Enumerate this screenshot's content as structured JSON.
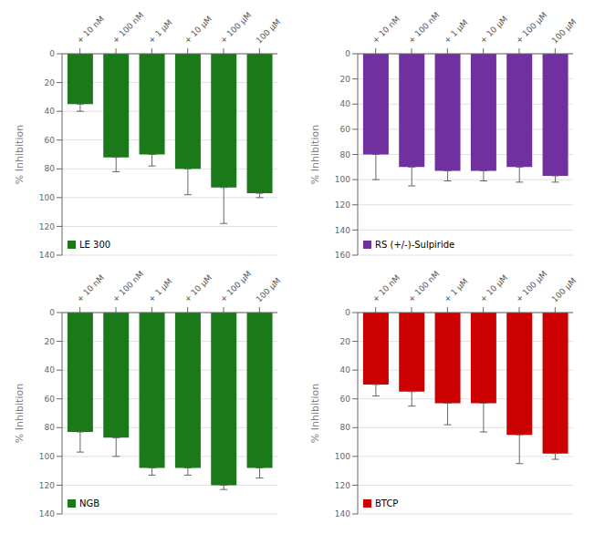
{
  "chart_data": [
    {
      "type": "bar",
      "categories": [
        "+ 10 nM",
        "+ 100 nM",
        "+ 1 μM",
        "+ 10 μM",
        "+ 100 μM",
        "100 μM"
      ],
      "series": [
        {
          "name": "LE 300",
          "color": "#1a7a1a",
          "values": [
            35,
            72,
            70,
            80,
            93,
            97
          ],
          "errors": [
            5,
            10,
            8,
            18,
            25,
            3
          ]
        }
      ],
      "ylabel": "% Inhibition",
      "ylim": [
        140,
        0
      ],
      "yticks": [
        0,
        20,
        40,
        60,
        80,
        100,
        120,
        140
      ],
      "grid": true,
      "legend": "lower left"
    },
    {
      "type": "bar",
      "categories": [
        "+ 10 nM",
        "+ 100 nM",
        "+ 1 μM",
        "+ 10 μM",
        "+ 100 μM",
        "100 μM"
      ],
      "series": [
        {
          "name": "RS (+/-)-Sulpiride",
          "color": "#7030a0",
          "values": [
            80,
            90,
            93,
            93,
            90,
            97
          ],
          "errors": [
            20,
            15,
            8,
            8,
            12,
            5
          ]
        }
      ],
      "ylabel": "% Inhibition",
      "ylim": [
        160,
        0
      ],
      "yticks": [
        0,
        20,
        40,
        60,
        80,
        100,
        120,
        140,
        160
      ],
      "grid": true,
      "legend": "lower left"
    },
    {
      "type": "bar",
      "categories": [
        "+ 10 nM",
        "+ 100 nM",
        "+ 1 μM",
        "+ 10 μM",
        "+ 100 μM",
        "100 μM"
      ],
      "series": [
        {
          "name": "NGB",
          "color": "#1a7a1a",
          "values": [
            83,
            87,
            108,
            108,
            120,
            108
          ],
          "errors": [
            14,
            13,
            5,
            5,
            3,
            7
          ]
        }
      ],
      "ylabel": "% Inhibition",
      "ylim": [
        140,
        0
      ],
      "yticks": [
        0,
        20,
        40,
        60,
        80,
        100,
        120,
        140
      ],
      "grid": true,
      "legend": "lower left"
    },
    {
      "type": "bar",
      "categories": [
        "+ 10 nM",
        "+ 100 nM",
        "+ 1 μM",
        "+ 10 μM",
        "+ 100 μM",
        "100 μM"
      ],
      "series": [
        {
          "name": "BTCP",
          "color": "#cc0000",
          "values": [
            50,
            55,
            63,
            63,
            85,
            98
          ],
          "errors": [
            8,
            10,
            15,
            20,
            20,
            4
          ]
        }
      ],
      "ylabel": "% Inhibition",
      "ylim": [
        140,
        0
      ],
      "yticks": [
        0,
        20,
        40,
        60,
        80,
        100,
        120,
        140
      ],
      "grid": true,
      "legend": "lower left"
    }
  ]
}
